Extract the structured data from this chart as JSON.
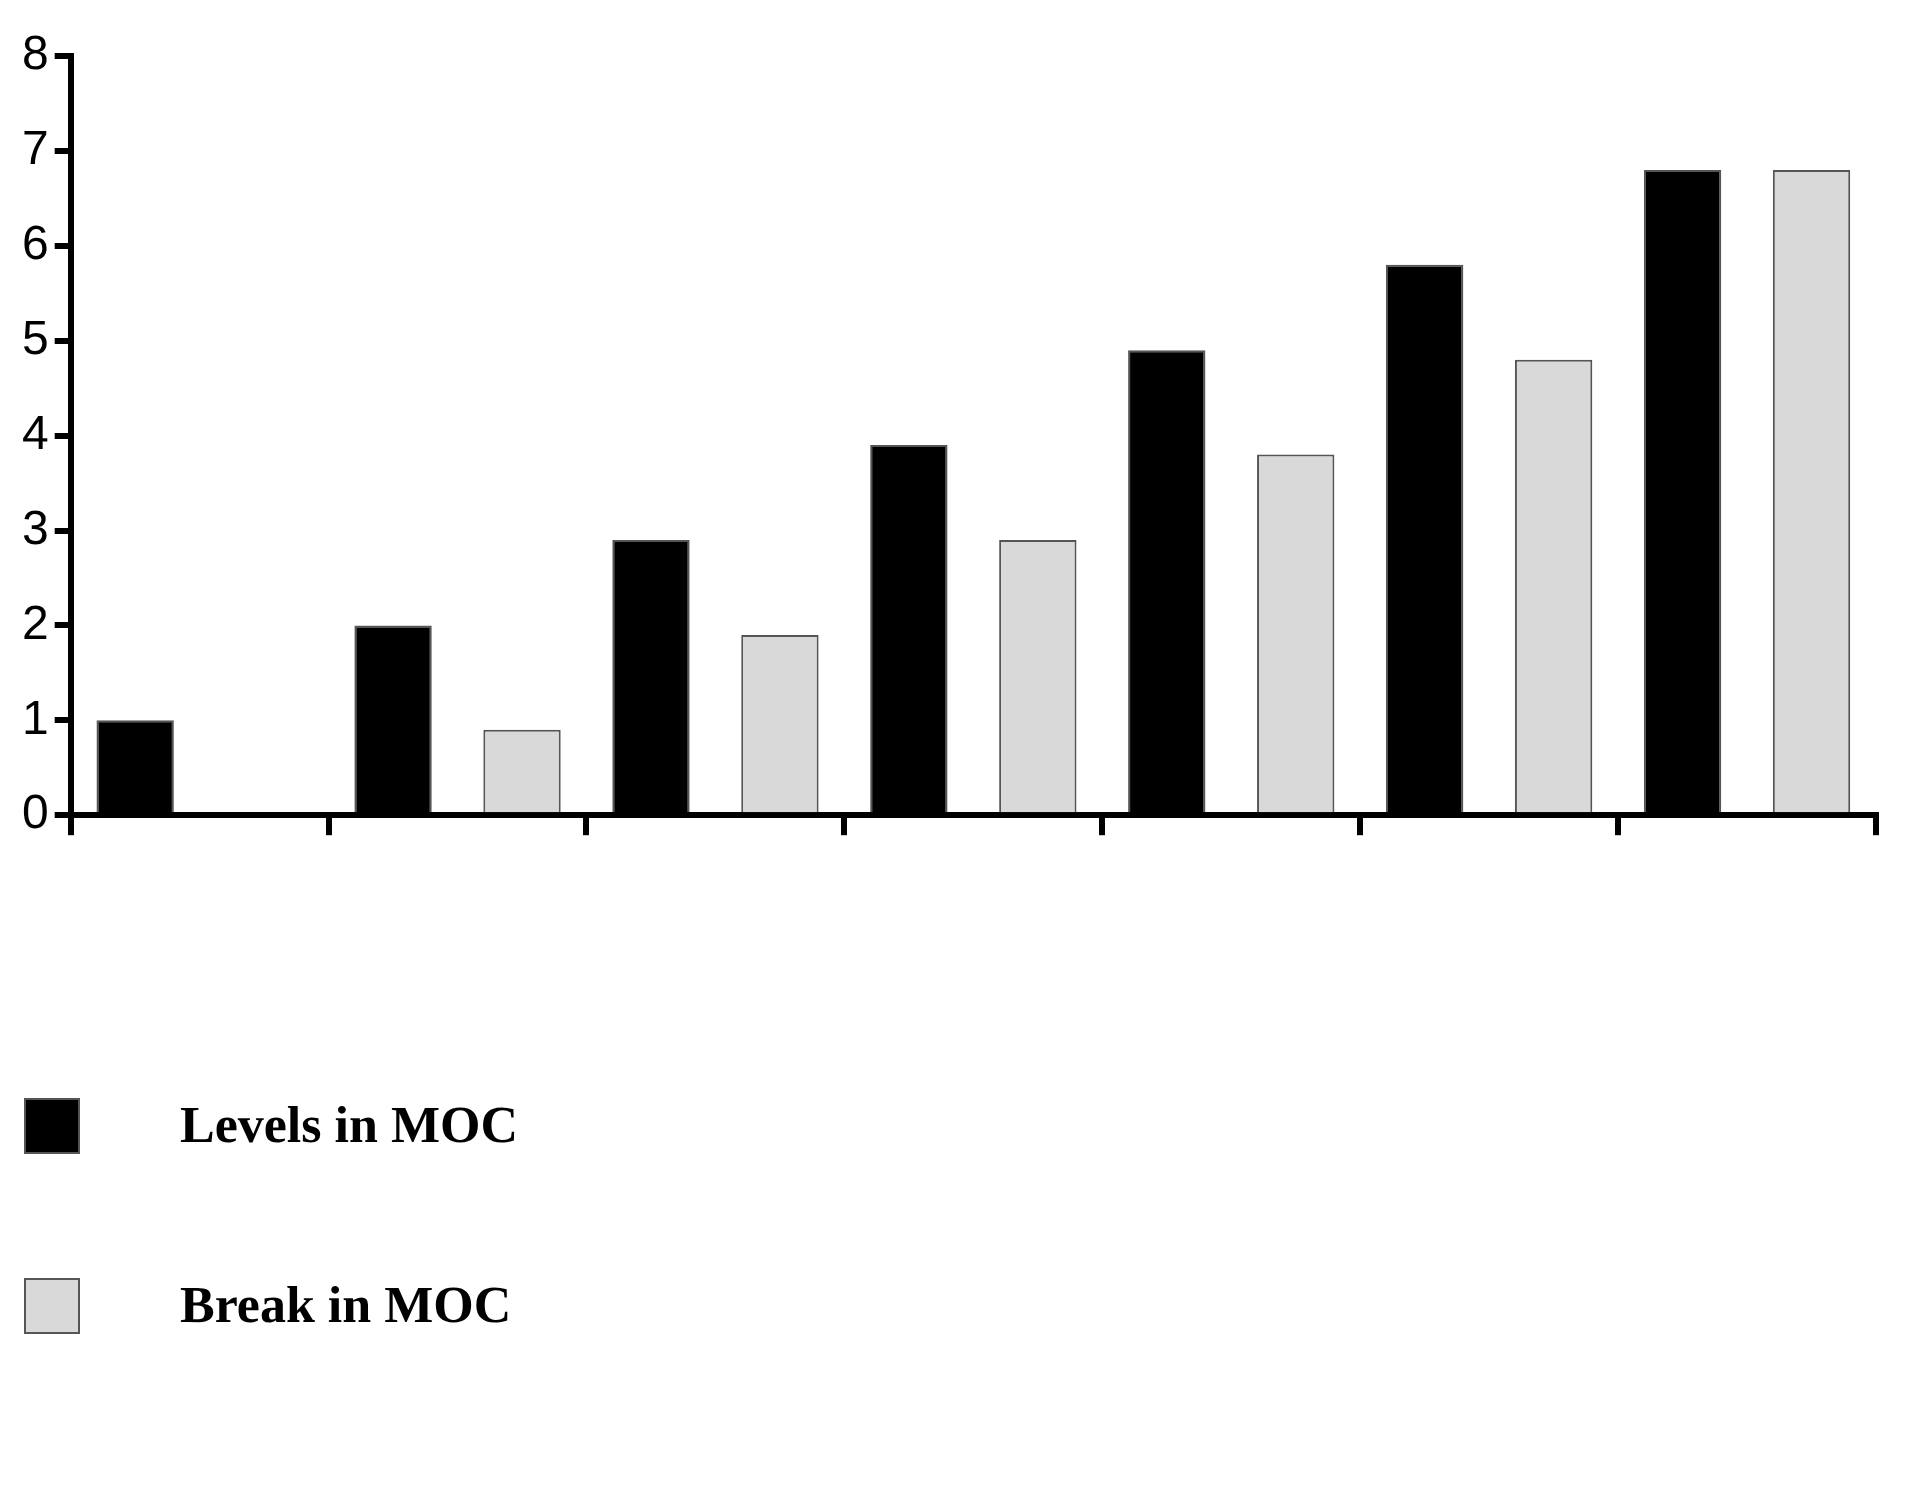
{
  "chart_data": {
    "type": "bar",
    "categories": [
      null,
      null,
      null,
      null,
      null,
      null,
      null
    ],
    "series": [
      {
        "name": "Levels in MOC",
        "color": "#000000",
        "values": [
          1,
          2,
          2.9,
          3.9,
          4.9,
          5.8,
          6.8
        ]
      },
      {
        "name": "Break in MOC",
        "color": "#d9d9d9",
        "values": [
          null,
          0.9,
          1.9,
          2.9,
          3.8,
          4.8,
          6.8
        ]
      }
    ],
    "ylim": [
      0,
      8
    ],
    "yticks": [
      0,
      1,
      2,
      3,
      4,
      5,
      6,
      7,
      8
    ],
    "grid": false,
    "legend": "bottom left"
  }
}
